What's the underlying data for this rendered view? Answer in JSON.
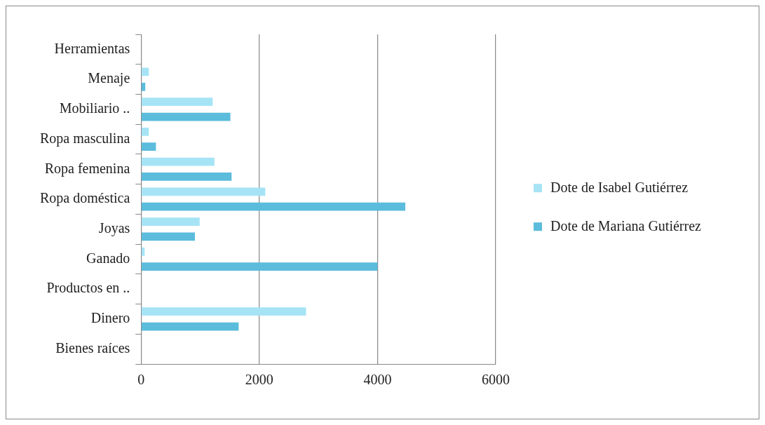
{
  "chart_data": {
    "type": "bar",
    "orientation": "horizontal",
    "categories": [
      "Herramientas",
      "Menaje",
      "Mobiliario ..",
      "Ropa masculina",
      "Ropa femenina",
      "Ropa doméstica",
      "Joyas",
      "Ganado",
      "Productos en ..",
      "Dinero",
      "Bienes raíces"
    ],
    "series": [
      {
        "name": "Dote de Isabel Gutiérrez",
        "color": "#a6e4f5",
        "values": [
          null,
          130,
          1210,
          130,
          1240,
          2100,
          990,
          60,
          null,
          2790,
          null
        ]
      },
      {
        "name": "Dote de Mariana Gutiérrez",
        "color": "#5bbcdc",
        "values": [
          null,
          70,
          1510,
          250,
          1530,
          4470,
          910,
          4000,
          null,
          1650,
          null
        ]
      }
    ],
    "xlim": [
      0,
      6000
    ],
    "xticks": [
      0,
      2000,
      4000,
      6000
    ],
    "grid": "x",
    "legend": "right"
  }
}
